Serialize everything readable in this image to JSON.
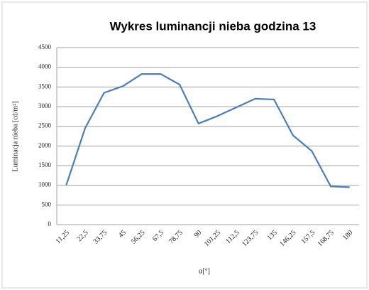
{
  "chart_data": {
    "type": "line",
    "title": "Wykres luminancji nieba godzina 13",
    "x_label": "α[°]",
    "y_label": "Luminacja nieba [cd/m²]",
    "categories": [
      "11,25",
      "22,5",
      "33,75",
      "45",
      "56,25",
      "67,5",
      "78,75",
      "90",
      "101,25",
      "112,5",
      "123,75",
      "135",
      "146,25",
      "157,5",
      "168,75",
      "180"
    ],
    "values": [
      1000,
      2450,
      3350,
      3520,
      3830,
      3830,
      3560,
      2570,
      2760,
      2980,
      3200,
      3180,
      2270,
      1870,
      970,
      950
    ],
    "color": "#4a7ebb",
    "ylim": [
      0,
      4500
    ],
    "yticks": [
      0,
      500,
      1000,
      1500,
      2000,
      2500,
      3000,
      3500,
      4000,
      4500
    ],
    "grid": true
  }
}
